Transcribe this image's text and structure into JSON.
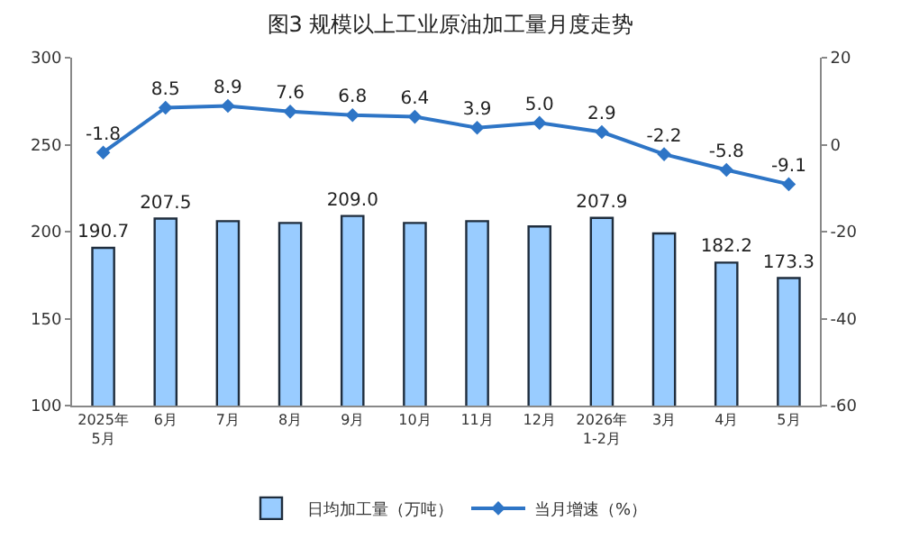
{
  "chart_data": {
    "type": "bar",
    "title": "图3 规模以上工业原油加工量月度走势",
    "categories": [
      "2025年\n5月",
      "6月",
      "7月",
      "8月",
      "9月",
      "10月",
      "11月",
      "12月",
      "2026年\n1-2月",
      "3月",
      "4月",
      "5月"
    ],
    "series": [
      {
        "name": "日均加工量（万吨）",
        "color": "#99ccff",
        "values": [
          190.7,
          207.5,
          206,
          205,
          209.0,
          205,
          206,
          203,
          207.9,
          199,
          182.2,
          173.3
        ],
        "value_labels": [
          "190.7",
          "207.5",
          null,
          null,
          "209.0",
          null,
          null,
          null,
          "207.9",
          null,
          "182.2",
          "173.3"
        ]
      },
      {
        "name": "当月增速（%）",
        "type": "line",
        "axis": "y2",
        "color": "#2e75c6",
        "marker": "diamond",
        "values": [
          -1.8,
          8.5,
          8.9,
          7.6,
          6.8,
          6.4,
          3.9,
          5.0,
          2.9,
          -2.2,
          -5.8,
          -9.1
        ],
        "value_labels": [
          "-1.8",
          "8.5",
          "8.9",
          "7.6",
          "6.8",
          "6.4",
          "3.9",
          "5.0",
          "2.9",
          "-2.2",
          "-5.8",
          "-9.1"
        ]
      }
    ],
    "ylim": [
      100,
      300
    ],
    "yticks": [
      100,
      150,
      200,
      250,
      300
    ],
    "y2lim": [
      -60,
      20
    ],
    "y2ticks": [
      -60,
      -40,
      -20,
      0,
      20
    ],
    "grid": false,
    "legend": "bottom"
  }
}
